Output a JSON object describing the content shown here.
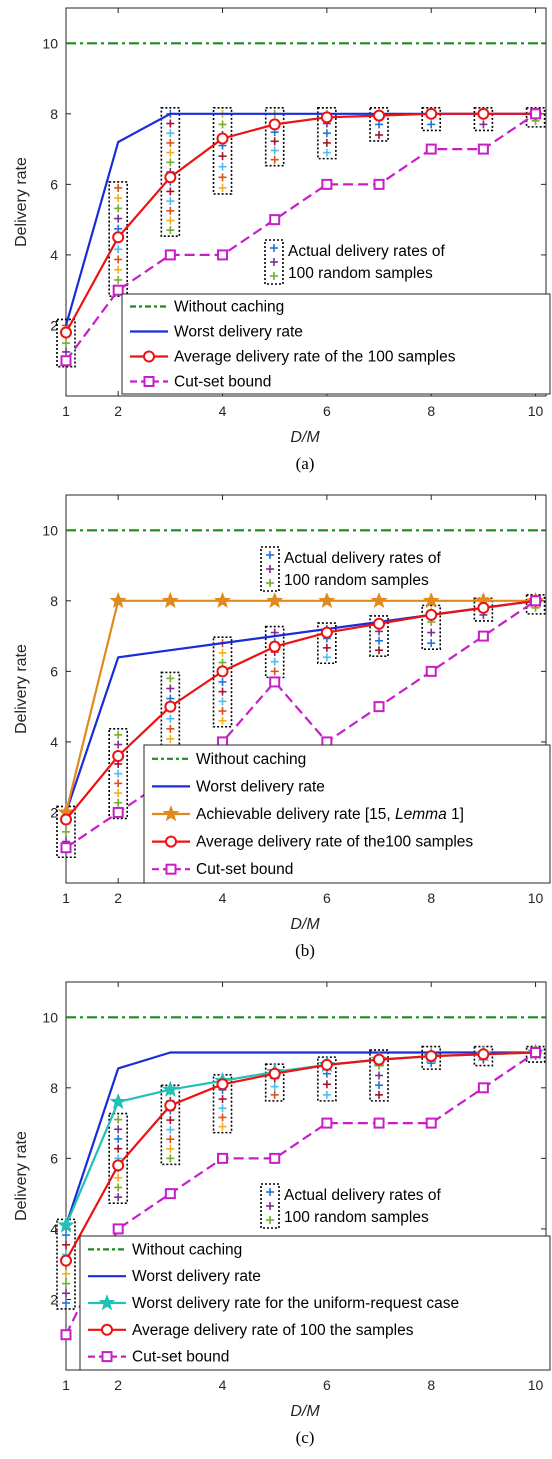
{
  "figure": {
    "panels": [
      {
        "caption": "(a)",
        "chart_data": {
          "type": "line",
          "xlabel": "D/M",
          "ylabel": "Delivery rate",
          "xlim": [
            1,
            10.2
          ],
          "ylim": [
            0,
            11
          ],
          "xticks": [
            1,
            2,
            4,
            6,
            8,
            10
          ],
          "yticks": [
            2,
            4,
            6,
            8,
            10
          ],
          "grid": false,
          "legend_placement": "bottom-right",
          "samples_legend": [
            "Actual delivery rates of",
            "100 random samples"
          ],
          "series": [
            {
              "name": "Without caching",
              "color": "#1e8a1e",
              "style": "dashdot",
              "marker": "none",
              "x": [
                1,
                10.2
              ],
              "y": [
                10,
                10
              ]
            },
            {
              "name": "Worst delivery rate",
              "color": "#1a2bd9",
              "style": "solid",
              "marker": "none",
              "x": [
                1,
                2,
                3,
                4,
                5,
                6,
                7,
                8,
                9,
                10
              ],
              "y": [
                2,
                7.2,
                8,
                8,
                8,
                8,
                8,
                8,
                8,
                8
              ]
            },
            {
              "name": "Average delivery rate of the 100 samples",
              "color": "#ee1111",
              "style": "solid",
              "marker": "circle",
              "x": [
                1,
                2,
                3,
                4,
                5,
                6,
                7,
                8,
                9,
                10
              ],
              "y": [
                1.8,
                4.5,
                6.2,
                7.3,
                7.7,
                7.9,
                7.95,
                8,
                8,
                8
              ]
            },
            {
              "name": "Cut-set bound",
              "color": "#c81ec8",
              "style": "dashed",
              "marker": "square",
              "x": [
                1,
                2,
                3,
                4,
                5,
                6,
                7,
                8,
                9,
                10
              ],
              "y": [
                1,
                3,
                4,
                4,
                5,
                6,
                6,
                7,
                7,
                8
              ]
            }
          ],
          "samples": [
            {
              "x": 1,
              "min": 1.0,
              "max": 2.0
            },
            {
              "x": 2,
              "min": 3.0,
              "max": 5.9
            },
            {
              "x": 3,
              "min": 4.7,
              "max": 8.0
            },
            {
              "x": 4,
              "min": 5.9,
              "max": 8.0
            },
            {
              "x": 5,
              "min": 6.7,
              "max": 8.0
            },
            {
              "x": 6,
              "min": 6.9,
              "max": 8.0
            },
            {
              "x": 7,
              "min": 7.4,
              "max": 8.0
            },
            {
              "x": 8,
              "min": 7.7,
              "max": 8.0
            },
            {
              "x": 9,
              "min": 7.7,
              "max": 8.0
            },
            {
              "x": 10,
              "min": 7.8,
              "max": 8.0
            }
          ]
        }
      },
      {
        "caption": "(b)",
        "chart_data": {
          "type": "line",
          "xlabel": "D/M",
          "ylabel": "Delivery rate",
          "xlim": [
            1,
            10.2
          ],
          "ylim": [
            0,
            11
          ],
          "xticks": [
            1,
            2,
            4,
            6,
            8,
            10
          ],
          "yticks": [
            2,
            4,
            6,
            8,
            10
          ],
          "grid": false,
          "legend_placement": "bottom-right",
          "samples_legend": [
            "Actual delivery rates of",
            "100 random samples"
          ],
          "series": [
            {
              "name": "Without caching",
              "color": "#1e8a1e",
              "style": "dashdot",
              "marker": "none",
              "x": [
                1,
                10.2
              ],
              "y": [
                10,
                10
              ]
            },
            {
              "name": "Worst delivery rate",
              "color": "#1a2bd9",
              "style": "solid",
              "marker": "none",
              "x": [
                1,
                2,
                3,
                4,
                5,
                6,
                7,
                8,
                9,
                10
              ],
              "y": [
                2,
                6.4,
                6.6,
                6.8,
                7.0,
                7.2,
                7.4,
                7.6,
                7.8,
                8
              ]
            },
            {
              "name": "Achievable delivery rate [15, Lemma 1]",
              "color": "#e08a1e",
              "style": "solid",
              "marker": "star",
              "x": [
                1,
                2,
                3,
                4,
                5,
                6,
                7,
                8,
                9,
                10
              ],
              "y": [
                2,
                8,
                8,
                8,
                8,
                8,
                8,
                8,
                8,
                8
              ]
            },
            {
              "name": "Average delivery rate of the100 samples",
              "color": "#ee1111",
              "style": "solid",
              "marker": "circle",
              "x": [
                1,
                2,
                3,
                4,
                5,
                6,
                7,
                8,
                9,
                10
              ],
              "y": [
                1.8,
                3.6,
                5.0,
                6.0,
                6.7,
                7.1,
                7.35,
                7.6,
                7.8,
                8
              ]
            },
            {
              "name": "Cut-set bound",
              "color": "#c81ec8",
              "style": "dashed",
              "marker": "square",
              "x": [
                1,
                2,
                3,
                4,
                5,
                6,
                7,
                8,
                9,
                10
              ],
              "y": [
                1,
                2,
                3,
                4,
                5.7,
                4,
                5,
                6,
                7,
                8
              ]
            }
          ],
          "samples": [
            {
              "x": 1,
              "min": 0.9,
              "max": 2.0
            },
            {
              "x": 2,
              "min": 2.0,
              "max": 4.2
            },
            {
              "x": 3,
              "min": 3.8,
              "max": 5.8
            },
            {
              "x": 4,
              "min": 4.6,
              "max": 6.8
            },
            {
              "x": 5,
              "min": 6.0,
              "max": 7.1
            },
            {
              "x": 6,
              "min": 6.4,
              "max": 7.2
            },
            {
              "x": 7,
              "min": 6.6,
              "max": 7.4
            },
            {
              "x": 8,
              "min": 6.8,
              "max": 7.7
            },
            {
              "x": 9,
              "min": 7.6,
              "max": 7.9
            },
            {
              "x": 10,
              "min": 7.8,
              "max": 8.0
            }
          ]
        }
      },
      {
        "caption": "(c)",
        "chart_data": {
          "type": "line",
          "xlabel": "D/M",
          "ylabel": "Delivery rate",
          "xlim": [
            1,
            10.2
          ],
          "ylim": [
            0,
            11
          ],
          "xticks": [
            1,
            2,
            4,
            6,
            8,
            10
          ],
          "yticks": [
            2,
            4,
            6,
            8,
            10
          ],
          "grid": false,
          "legend_placement": "bottom-right",
          "samples_legend": [
            "Actual delivery rates of",
            "100 random samples"
          ],
          "series": [
            {
              "name": "Without caching",
              "color": "#1e8a1e",
              "style": "dashdot",
              "marker": "none",
              "x": [
                1,
                10.2
              ],
              "y": [
                10,
                10
              ]
            },
            {
              "name": "Worst delivery rate",
              "color": "#1a2bd9",
              "style": "solid",
              "marker": "none",
              "x": [
                1,
                2,
                3,
                4,
                5,
                6,
                7,
                8,
                9,
                10
              ],
              "y": [
                4.1,
                8.55,
                9,
                9,
                9,
                9,
                9,
                9,
                9,
                9
              ]
            },
            {
              "name": "Worst delivery rate for the uniform-request case",
              "color": "#21c1b8",
              "style": "solid",
              "marker": "star",
              "x": [
                1,
                2,
                3,
                4,
                5,
                6,
                7,
                8,
                9,
                10
              ],
              "y": [
                4.1,
                7.6,
                7.95,
                8.2,
                8.45,
                8.65,
                8.8,
                8.9,
                8.95,
                9
              ]
            },
            {
              "name": "Average delivery rate of 100 the samples",
              "color": "#ee1111",
              "style": "solid",
              "marker": "circle",
              "x": [
                1,
                2,
                3,
                4,
                5,
                6,
                7,
                8,
                9,
                10
              ],
              "y": [
                3.1,
                5.8,
                7.5,
                8.1,
                8.4,
                8.65,
                8.8,
                8.9,
                8.95,
                9
              ]
            },
            {
              "name": "Cut-set bound",
              "color": "#c81ec8",
              "style": "dashed",
              "marker": "square",
              "x": [
                1,
                2,
                3,
                4,
                5,
                6,
                7,
                8,
                9,
                10
              ],
              "y": [
                1,
                4,
                5,
                6,
                6,
                7,
                7,
                7,
                8,
                9
              ]
            }
          ],
          "samples": [
            {
              "x": 1,
              "min": 1.9,
              "max": 4.1
            },
            {
              "x": 2,
              "min": 4.9,
              "max": 7.1
            },
            {
              "x": 3,
              "min": 6.0,
              "max": 7.9
            },
            {
              "x": 4,
              "min": 6.9,
              "max": 8.2
            },
            {
              "x": 5,
              "min": 7.8,
              "max": 8.5
            },
            {
              "x": 6,
              "min": 7.8,
              "max": 8.7
            },
            {
              "x": 7,
              "min": 7.8,
              "max": 8.9
            },
            {
              "x": 8,
              "min": 8.7,
              "max": 9.0
            },
            {
              "x": 9,
              "min": 8.8,
              "max": 9.0
            },
            {
              "x": 10,
              "min": 8.9,
              "max": 9.0
            }
          ]
        }
      }
    ]
  }
}
